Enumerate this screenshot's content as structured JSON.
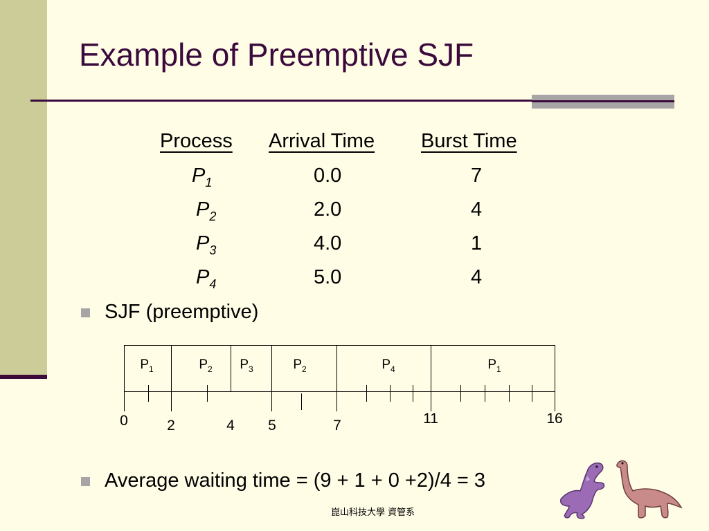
{
  "slide": {
    "title": "Example of Preemptive SJF",
    "footer": "崑山科技大學 資管系"
  },
  "table": {
    "headers": [
      "Process",
      "Arrival Time",
      "Burst Time"
    ],
    "rows": [
      {
        "name": "P",
        "sub": "1",
        "arrival": "0.0",
        "burst": "7"
      },
      {
        "name": "P",
        "sub": "2",
        "arrival": "2.0",
        "burst": "4"
      },
      {
        "name": "P",
        "sub": "3",
        "arrival": "4.0",
        "burst": "1"
      },
      {
        "name": "P",
        "sub": "4",
        "arrival": "5.0",
        "burst": "4"
      }
    ]
  },
  "bullets": [
    "SJF (preemptive)",
    "Average waiting time = (9 + 1 + 0 +2)/4 = 3"
  ],
  "gantt": {
    "blocks": [
      {
        "name": "P",
        "sub": "1"
      },
      {
        "name": "P",
        "sub": "2"
      },
      {
        "name": "P",
        "sub": "3"
      },
      {
        "name": "P",
        "sub": "2"
      },
      {
        "name": "P",
        "sub": "4"
      },
      {
        "name": "P",
        "sub": "1"
      }
    ],
    "time_labels": [
      "0",
      "2",
      "4",
      "5",
      "7",
      "11",
      "16"
    ]
  },
  "icons": [
    "purple-dinosaur-icon",
    "pink-brontosaurus-icon"
  ],
  "colors": {
    "background": "#fffde6",
    "sidebar": "#cccc99",
    "title": "#3a0a3c",
    "accent": "#a7a5a6"
  }
}
